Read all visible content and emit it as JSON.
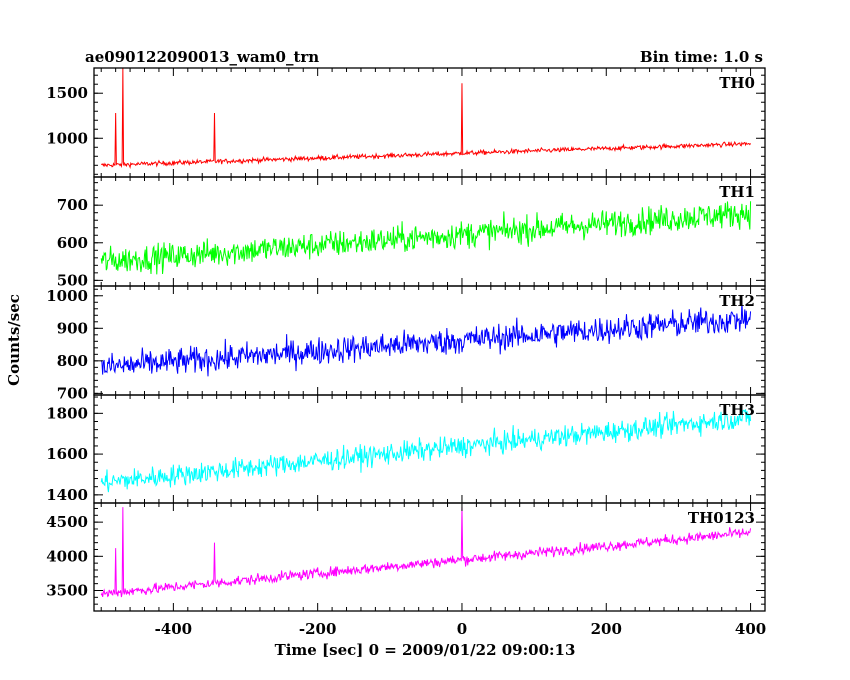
{
  "header": {
    "title": "ae090122090013_wam0_trn",
    "bin_time": "Bin time: 1.0 s"
  },
  "axes": {
    "ylabel": "Counts/sec",
    "xlabel": "Time [sec] 0 = 2009/01/22 09:00:13"
  },
  "chart_data": {
    "type": "line",
    "xlim": [
      -510,
      420
    ],
    "x_ticks": [
      -400,
      -200,
      0,
      200,
      400
    ],
    "x_range": [
      -500,
      400
    ],
    "panels": [
      {
        "name": "TH0",
        "color": "#ff0000",
        "ylim": [
          570,
          1780
        ],
        "y_ticks": [
          1000,
          1500
        ],
        "trend_start": 700,
        "trend_end": 940,
        "noise": 18,
        "spikes": [
          {
            "x": -480,
            "y": 1280
          },
          {
            "x": -470,
            "y": 1780
          },
          {
            "x": -343,
            "y": 1280
          },
          {
            "x": 0,
            "y": 1610
          }
        ]
      },
      {
        "name": "TH1",
        "color": "#00ff00",
        "ylim": [
          485,
          775
        ],
        "y_ticks": [
          500,
          600,
          700
        ],
        "trend_start": 550,
        "trend_end": 680,
        "noise": 26,
        "spikes": []
      },
      {
        "name": "TH2",
        "color": "#0000ff",
        "ylim": [
          695,
          1030
        ],
        "y_ticks": [
          700,
          800,
          900,
          1000
        ],
        "trend_start": 780,
        "trend_end": 930,
        "noise": 30,
        "spikes": []
      },
      {
        "name": "TH3",
        "color": "#00ffff",
        "ylim": [
          1360,
          1890
        ],
        "y_ticks": [
          1400,
          1600,
          1800
        ],
        "trend_start": 1460,
        "trend_end": 1780,
        "noise": 38,
        "spikes": []
      },
      {
        "name": "TH0123",
        "color": "#ff00ff",
        "ylim": [
          3200,
          4780
        ],
        "y_ticks": [
          3500,
          4000,
          4500
        ],
        "trend_start": 3450,
        "trend_end": 4350,
        "noise": 55,
        "spikes": [
          {
            "x": -480,
            "y": 4120
          },
          {
            "x": -470,
            "y": 4720
          },
          {
            "x": -343,
            "y": 4200
          },
          {
            "x": 0,
            "y": 4720
          }
        ]
      }
    ]
  }
}
